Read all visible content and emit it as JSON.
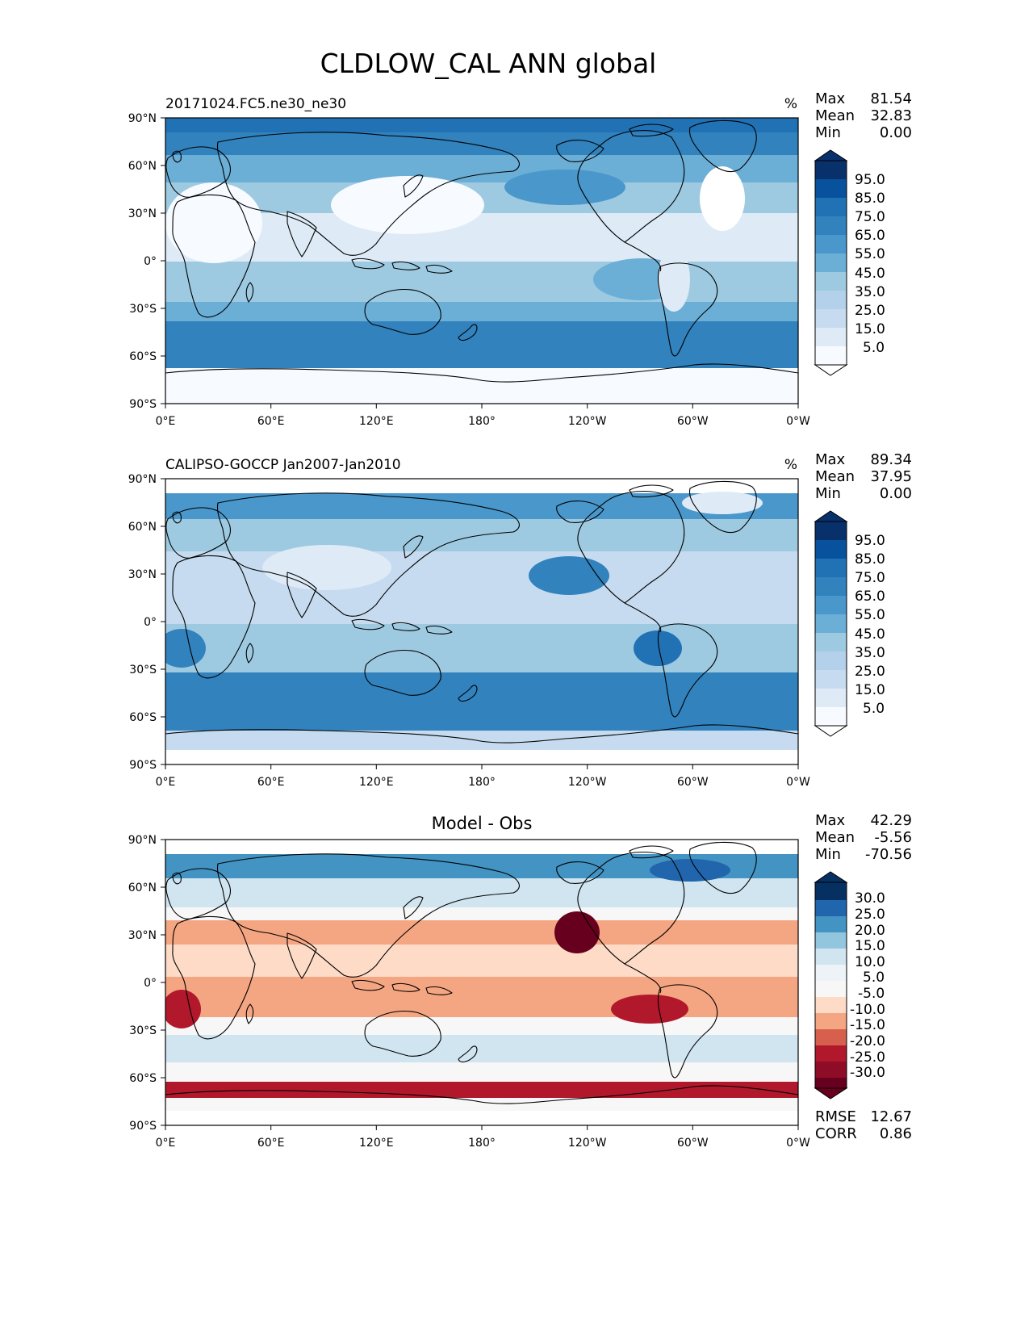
{
  "figure_title": "CLDLOW_CAL ANN global",
  "colors": {
    "blues": [
      "#f7fbff",
      "#deebf7",
      "#c6dbef",
      "#b3d1eb",
      "#9ecae1",
      "#6baed6",
      "#4a97cb",
      "#3182bd",
      "#2171b5",
      "#08519c",
      "#08306b"
    ],
    "diverging": [
      "#67001f",
      "#b2182b",
      "#d6604d",
      "#f4a582",
      "#fddbc7",
      "#f7f7f7",
      "#d1e5f0",
      "#92c5de",
      "#4393c3",
      "#2166ac",
      "#053061"
    ]
  },
  "chart_data": [
    {
      "type": "heatmap",
      "panel": "model",
      "left_title": "20171024.FC5.ne30_ne30",
      "units": "%",
      "stats": [
        {
          "label": "Max",
          "value": "81.54"
        },
        {
          "label": "Mean",
          "value": "32.83"
        },
        {
          "label": "Min",
          "value": "0.00"
        }
      ],
      "colorbar_ticks": [
        "95.0",
        "85.0",
        "75.0",
        "65.0",
        "55.0",
        "45.0",
        "35.0",
        "25.0",
        "15.0",
        "5.0"
      ],
      "xticks": [
        "0°E",
        "60°E",
        "120°E",
        "180°",
        "120°W",
        "60°W",
        "0°W"
      ],
      "yticks": [
        "90°N",
        "60°N",
        "30°N",
        "0°",
        "30°S",
        "60°S",
        "90°S"
      ],
      "xlim": [
        0,
        360
      ],
      "ylim": [
        -90,
        90
      ]
    },
    {
      "type": "heatmap",
      "panel": "obs",
      "left_title": "CALIPSO-GOCCP Jan2007-Jan2010",
      "units": "%",
      "stats": [
        {
          "label": "Max",
          "value": "89.34"
        },
        {
          "label": "Mean",
          "value": "37.95"
        },
        {
          "label": "Min",
          "value": "0.00"
        }
      ],
      "colorbar_ticks": [
        "95.0",
        "85.0",
        "75.0",
        "65.0",
        "55.0",
        "45.0",
        "35.0",
        "25.0",
        "15.0",
        "5.0"
      ],
      "xticks": [
        "0°E",
        "60°E",
        "120°E",
        "180°",
        "120°W",
        "60°W",
        "0°W"
      ],
      "yticks": [
        "90°N",
        "60°N",
        "30°N",
        "0°",
        "30°S",
        "60°S",
        "90°S"
      ],
      "xlim": [
        0,
        360
      ],
      "ylim": [
        -90,
        90
      ]
    },
    {
      "type": "heatmap",
      "panel": "diff",
      "title": "Model - Obs",
      "stats": [
        {
          "label": "Max",
          "value": "42.29"
        },
        {
          "label": "Mean",
          "value": "-5.56"
        },
        {
          "label": "Min",
          "value": "-70.56"
        }
      ],
      "colorbar_ticks": [
        "30.0",
        "25.0",
        "20.0",
        "15.0",
        "10.0",
        "5.0",
        "-5.0",
        "-10.0",
        "-15.0",
        "-20.0",
        "-25.0",
        "-30.0"
      ],
      "bottom_stats": [
        {
          "label": "RMSE",
          "value": "12.67"
        },
        {
          "label": "CORR",
          "value": "0.86"
        }
      ],
      "xticks": [
        "0°E",
        "60°E",
        "120°E",
        "180°",
        "120°W",
        "60°W",
        "0°W"
      ],
      "yticks": [
        "90°N",
        "60°N",
        "30°N",
        "0°",
        "30°S",
        "60°S",
        "90°S"
      ],
      "xlim": [
        0,
        360
      ],
      "ylim": [
        -90,
        90
      ]
    }
  ]
}
